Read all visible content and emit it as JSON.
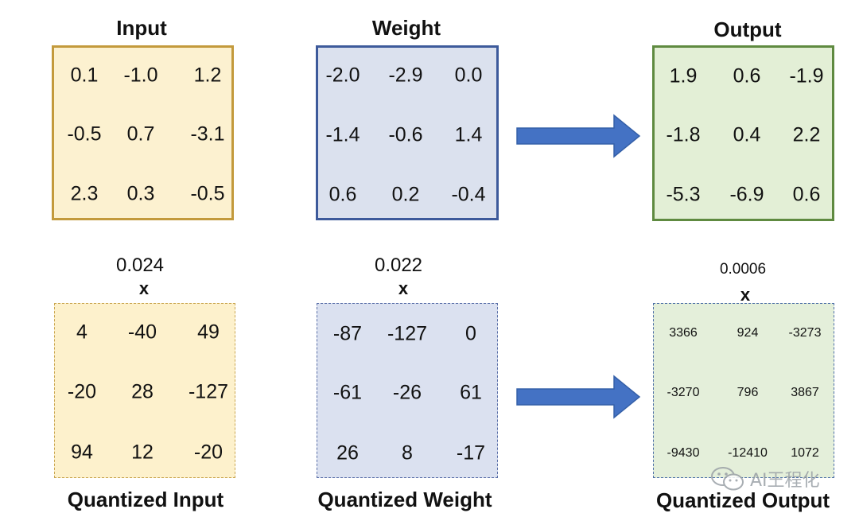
{
  "input": {
    "title": "Input",
    "values": [
      [
        "0.1",
        "-1.0",
        "1.2"
      ],
      [
        "-0.5",
        "0.7",
        "-3.1"
      ],
      [
        "2.3",
        "0.3",
        "-0.5"
      ]
    ]
  },
  "weight": {
    "title": "Weight",
    "values": [
      [
        "-2.0",
        "-2.9",
        "0.0"
      ],
      [
        "-1.4",
        "-0.6",
        "1.4"
      ],
      [
        "0.6",
        "0.2",
        "-0.4"
      ]
    ]
  },
  "output": {
    "title": "Output",
    "values": [
      [
        "1.9",
        "0.6",
        "-1.9"
      ],
      [
        "-1.8",
        "0.4",
        "2.2"
      ],
      [
        "-5.3",
        "-6.9",
        "0.6"
      ]
    ]
  },
  "quantized_input": {
    "title": "Quantized Input",
    "scale": "0.024",
    "times": "x",
    "values": [
      [
        "4",
        "-40",
        "49"
      ],
      [
        "-20",
        "28",
        "-127"
      ],
      [
        "94",
        "12",
        "-20"
      ]
    ]
  },
  "quantized_weight": {
    "title": "Quantized Weight",
    "scale": "0.022",
    "times": "x",
    "values": [
      [
        "-87",
        "-127",
        "0"
      ],
      [
        "-61",
        "-26",
        "61"
      ],
      [
        "26",
        "8",
        "-17"
      ]
    ]
  },
  "quantized_output": {
    "title": "Quantized Output",
    "scale": "0.0006",
    "times": "x",
    "values": [
      [
        "3366",
        "924",
        "-3273"
      ],
      [
        "-3270",
        "796",
        "3867"
      ],
      [
        "-9430",
        "-12410",
        "1072"
      ]
    ]
  },
  "watermark": {
    "text": "AI王程化",
    "icon": "wechat-icon"
  },
  "colors": {
    "input_border": "#c39a3c",
    "input_fill": "#fcf1d0",
    "weight_border": "#3d5a9b",
    "weight_fill": "#dbe1ee",
    "output_border": "#5f8a40",
    "output_fill": "#e3efd6",
    "q_input_border": "#c9a54f",
    "q_input_fill": "#fdf1cc",
    "q_weight_border": "#5a6fa8",
    "q_weight_fill": "#dbe1f0",
    "q_output_border": "#4d6fa8",
    "q_output_fill": "#e4efda",
    "arrow": "#4472c4"
  }
}
